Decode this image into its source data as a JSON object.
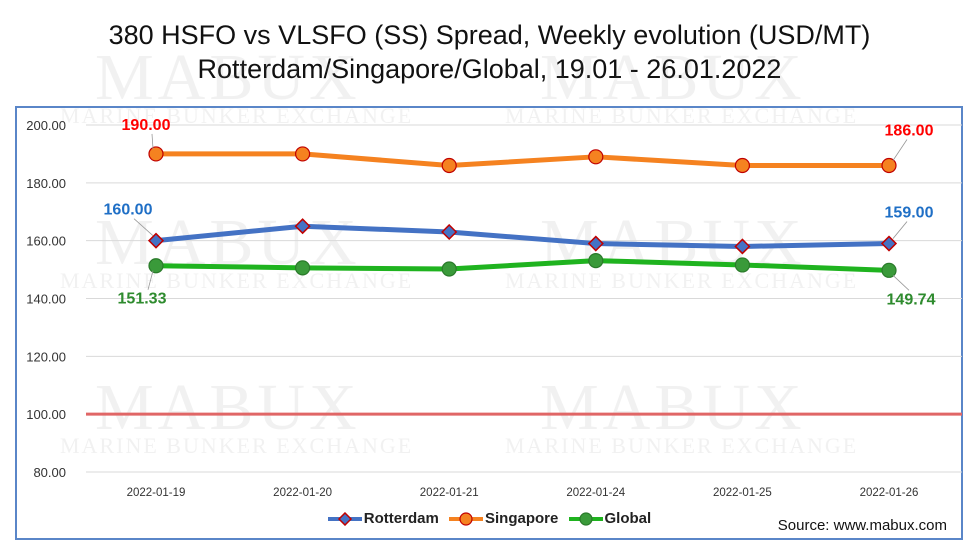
{
  "chart_data": {
    "type": "line",
    "title": "380 HSFO vs VLSFO (SS) Spread, Weekly evolution (USD/MT)",
    "subtitle": "Rotterdam/Singapore/Global, 19.01 - 26.01.2022",
    "categories": [
      "2022-01-19",
      "2022-01-20",
      "2022-01-21",
      "2022-01-24",
      "2022-01-25",
      "2022-01-26"
    ],
    "ylim": [
      80,
      200
    ],
    "yticks": [
      "80.00",
      "100.00",
      "120.00",
      "140.00",
      "160.00",
      "180.00",
      "200.00"
    ],
    "grid": true,
    "legend_position": "bottom",
    "reference_line": {
      "value": 100,
      "color": "#e06666"
    },
    "series": [
      {
        "name": "Rotterdam",
        "color": "#4472c4",
        "marker": "diamond",
        "marker_fill": "#4472c4",
        "marker_stroke": "#c00000",
        "values": [
          160,
          165,
          163,
          159,
          158,
          159
        ],
        "first_label": "160.00",
        "last_label": "159.00",
        "label_color": "#1f6fc6"
      },
      {
        "name": "Singapore",
        "color": "#f58220",
        "marker": "circle",
        "marker_fill": "#f58220",
        "marker_stroke": "#c00000",
        "values": [
          190,
          190,
          186,
          189,
          186,
          186
        ],
        "first_label": "190.00",
        "last_label": "186.00",
        "label_color": "#ff0000"
      },
      {
        "name": "Global",
        "color": "#1fb31f",
        "marker": "circle",
        "marker_fill": "#3a9a3a",
        "marker_stroke": "#2a7a2a",
        "values": [
          151.33,
          150.6,
          150.2,
          153.1,
          151.6,
          149.74
        ],
        "first_label": "151.33",
        "last_label": "149.74",
        "label_color": "#2e8b2e"
      }
    ]
  },
  "watermark": {
    "brand": "MABUX",
    "tagline": "MARINE BUNKER EXCHANGE"
  },
  "source_text": "Source: www.mabux.com"
}
